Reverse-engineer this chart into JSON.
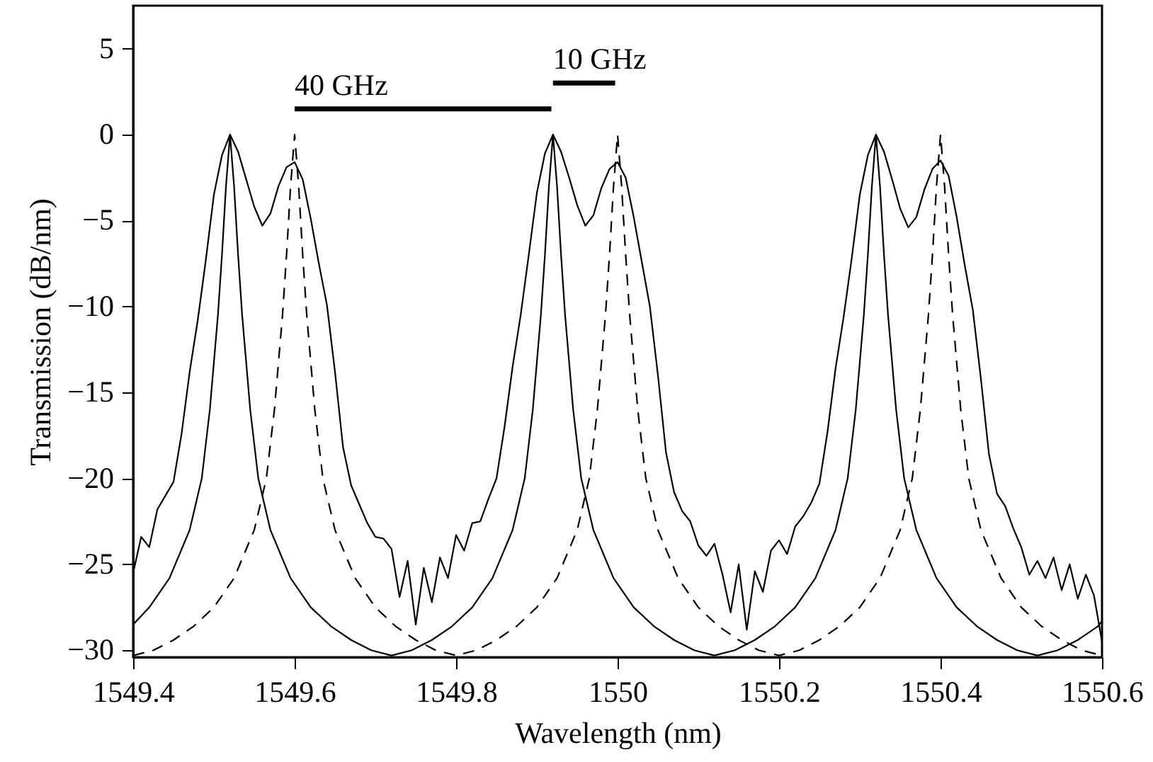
{
  "chart_data": {
    "type": "line",
    "xlabel": "Wavelength (nm)",
    "ylabel": "Transmission (dB/nm)",
    "xlim": [
      1549.4,
      1550.6
    ],
    "ylim": [
      -30.4,
      7.5
    ],
    "xticks": [
      1549.4,
      1549.6,
      1549.8,
      1550,
      1550.2,
      1550.4,
      1550.6
    ],
    "yticks": [
      -30,
      -25,
      -20,
      -15,
      -10,
      -5,
      0,
      5
    ],
    "grid": false,
    "series": [
      {
        "color": "#000000",
        "line_style": "solid",
        "x": [
          1549.4,
          1549.41,
          1549.42,
          1549.43,
          1549.44,
          1549.45,
          1549.46,
          1549.47,
          1549.48,
          1549.49,
          1549.5,
          1549.51,
          1549.52,
          1549.53,
          1549.54,
          1549.55,
          1549.56,
          1549.57,
          1549.58,
          1549.59,
          1549.6,
          1549.61,
          1549.62,
          1549.63,
          1549.64,
          1549.65,
          1549.66,
          1549.67,
          1549.68,
          1549.69,
          1549.7,
          1549.71,
          1549.72,
          1549.73,
          1549.74,
          1549.75,
          1549.76,
          1549.77,
          1549.78,
          1549.79,
          1549.8,
          1549.81,
          1549.82,
          1549.83,
          1549.84,
          1549.85,
          1549.86,
          1549.87,
          1549.88,
          1549.89,
          1549.9,
          1549.91,
          1549.92,
          1549.93,
          1549.94,
          1549.95,
          1549.96,
          1549.97,
          1549.98,
          1549.99,
          1550.0,
          1550.01,
          1550.02,
          1550.03,
          1550.04,
          1550.05,
          1550.06,
          1550.07,
          1550.08,
          1550.09,
          1550.1,
          1550.11,
          1550.12,
          1550.13,
          1550.14,
          1550.15,
          1550.16,
          1550.17,
          1550.18,
          1550.19,
          1550.2,
          1550.21,
          1550.22,
          1550.23,
          1550.24,
          1550.25,
          1550.26,
          1550.27,
          1550.28,
          1550.29,
          1550.3,
          1550.31,
          1550.32,
          1550.33,
          1550.34,
          1550.35,
          1550.36,
          1550.37,
          1550.38,
          1550.39,
          1550.4,
          1550.41,
          1550.42,
          1550.43,
          1550.44,
          1550.45,
          1550.46,
          1550.47,
          1550.48,
          1550.49,
          1550.5,
          1550.51,
          1550.52,
          1550.53,
          1550.54,
          1550.55,
          1550.56,
          1550.57,
          1550.58,
          1550.59,
          1550.6
        ],
        "values": [
          -25.5,
          -23.4,
          -24.0,
          -21.8,
          -21.0,
          -20.2,
          -17.4,
          -13.8,
          -10.8,
          -7.3,
          -3.5,
          -1.2,
          0,
          -1.0,
          -2.6,
          -4.2,
          -5.3,
          -4.6,
          -3.0,
          -1.9,
          -1.6,
          -2.6,
          -4.9,
          -7.5,
          -9.9,
          -13.8,
          -18.2,
          -20.4,
          -21.5,
          -22.6,
          -23.4,
          -23.5,
          -24.1,
          -26.9,
          -24.8,
          -28.5,
          -25.2,
          -27.2,
          -24.6,
          -25.8,
          -23.3,
          -24.2,
          -22.6,
          -22.5,
          -21.2,
          -20.0,
          -17.0,
          -13.5,
          -10.5,
          -7.0,
          -3.4,
          -1.1,
          0,
          -1.0,
          -2.5,
          -4.1,
          -5.3,
          -4.7,
          -3.1,
          -2.0,
          -1.6,
          -2.5,
          -4.8,
          -7.4,
          -10.0,
          -14.0,
          -18.5,
          -20.8,
          -21.9,
          -22.5,
          -23.9,
          -24.5,
          -23.8,
          -25.6,
          -27.8,
          -25.0,
          -28.8,
          -25.4,
          -26.6,
          -24.2,
          -23.6,
          -24.4,
          -22.8,
          -22.2,
          -21.4,
          -20.3,
          -17.3,
          -13.6,
          -10.6,
          -7.2,
          -3.5,
          -1.2,
          0,
          -1.0,
          -2.6,
          -4.3,
          -5.4,
          -4.8,
          -3.2,
          -2.0,
          -1.5,
          -2.4,
          -4.8,
          -7.6,
          -10.2,
          -14.2,
          -18.6,
          -20.9,
          -21.6,
          -22.9,
          -24.0,
          -25.6,
          -24.8,
          -25.8,
          -24.6,
          -26.5,
          -25.0,
          -27.0,
          -25.6,
          -26.8,
          -29.5
        ]
      },
      {
        "color": "#000000",
        "line_style": "solid",
        "x": [
          1549.4,
          1549.42,
          1549.445,
          1549.47,
          1549.485,
          1549.495,
          1549.505,
          1549.51,
          1549.515,
          1549.52,
          1549.525,
          1549.53,
          1549.535,
          1549.545,
          1549.555,
          1549.57,
          1549.595,
          1549.62,
          1549.645,
          1549.67,
          1549.695,
          1549.72,
          1549.745,
          1549.77,
          1549.795,
          1549.82,
          1549.845,
          1549.87,
          1549.885,
          1549.895,
          1549.905,
          1549.91,
          1549.915,
          1549.92,
          1549.925,
          1549.93,
          1549.935,
          1549.945,
          1549.955,
          1549.97,
          1549.995,
          1550.02,
          1550.045,
          1550.07,
          1550.095,
          1550.12,
          1550.145,
          1550.17,
          1550.195,
          1550.22,
          1550.245,
          1550.27,
          1550.285,
          1550.295,
          1550.305,
          1550.31,
          1550.315,
          1550.32,
          1550.325,
          1550.33,
          1550.335,
          1550.345,
          1550.355,
          1550.37,
          1550.395,
          1550.42,
          1550.445,
          1550.47,
          1550.495,
          1550.52,
          1550.545,
          1550.57,
          1550.595,
          1550.6
        ],
        "values": [
          -28.5,
          -27.5,
          -25.8,
          -23.0,
          -20.0,
          -16.0,
          -10.5,
          -7.0,
          -3.0,
          0,
          -3.0,
          -7.0,
          -10.5,
          -16.0,
          -20.0,
          -23.0,
          -25.8,
          -27.5,
          -28.6,
          -29.4,
          -30.0,
          -30.3,
          -30.0,
          -29.4,
          -28.6,
          -27.5,
          -25.8,
          -23.0,
          -20.0,
          -16.0,
          -10.5,
          -7.0,
          -3.0,
          0,
          -3.0,
          -7.0,
          -10.5,
          -16.0,
          -20.0,
          -23.0,
          -25.8,
          -27.5,
          -28.6,
          -29.4,
          -30.0,
          -30.3,
          -30.0,
          -29.4,
          -28.6,
          -27.5,
          -25.8,
          -23.0,
          -20.0,
          -16.0,
          -10.5,
          -7.0,
          -3.0,
          0,
          -3.0,
          -7.0,
          -10.5,
          -16.0,
          -20.0,
          -23.0,
          -25.8,
          -27.5,
          -28.6,
          -29.4,
          -30.0,
          -30.3,
          -30.0,
          -29.4,
          -28.6,
          -28.3
        ]
      },
      {
        "color": "#000000",
        "line_style": "dashed",
        "x": [
          1549.4,
          1549.425,
          1549.45,
          1549.475,
          1549.5,
          1549.525,
          1549.55,
          1549.565,
          1549.575,
          1549.585,
          1549.59,
          1549.595,
          1549.6,
          1549.605,
          1549.61,
          1549.615,
          1549.625,
          1549.635,
          1549.65,
          1549.675,
          1549.7,
          1549.725,
          1549.75,
          1549.775,
          1549.8,
          1549.825,
          1549.85,
          1549.875,
          1549.9,
          1549.925,
          1549.95,
          1549.965,
          1549.975,
          1549.985,
          1549.99,
          1549.995,
          1550.0,
          1550.005,
          1550.01,
          1550.015,
          1550.025,
          1550.035,
          1550.05,
          1550.075,
          1550.1,
          1550.125,
          1550.15,
          1550.175,
          1550.2,
          1550.225,
          1550.25,
          1550.275,
          1550.3,
          1550.325,
          1550.35,
          1550.365,
          1550.375,
          1550.385,
          1550.39,
          1550.395,
          1550.4,
          1550.405,
          1550.41,
          1550.415,
          1550.425,
          1550.435,
          1550.45,
          1550.475,
          1550.5,
          1550.525,
          1550.55,
          1550.575,
          1550.6
        ],
        "values": [
          -30.3,
          -30.0,
          -29.4,
          -28.6,
          -27.5,
          -25.8,
          -23.0,
          -20.0,
          -16.0,
          -10.5,
          -7.0,
          -3.0,
          0,
          -3.0,
          -7.0,
          -10.5,
          -16.0,
          -20.0,
          -23.0,
          -25.8,
          -27.5,
          -28.6,
          -29.4,
          -30.0,
          -30.3,
          -30.0,
          -29.4,
          -28.6,
          -27.5,
          -25.8,
          -23.0,
          -20.0,
          -16.0,
          -10.5,
          -7.0,
          -3.0,
          0,
          -3.0,
          -7.0,
          -10.5,
          -16.0,
          -20.0,
          -23.0,
          -25.8,
          -27.5,
          -28.6,
          -29.4,
          -30.0,
          -30.3,
          -30.0,
          -29.4,
          -28.6,
          -27.5,
          -25.8,
          -23.0,
          -20.0,
          -16.0,
          -10.5,
          -7.0,
          -3.0,
          0,
          -3.0,
          -7.0,
          -10.5,
          -16.0,
          -20.0,
          -23.0,
          -25.8,
          -27.5,
          -28.6,
          -29.4,
          -30.0,
          -30.3
        ]
      },
      {
        "color": "#000000",
        "line_style": "solid",
        "x": [
          1549.6,
          1549.918
        ],
        "values": [
          1.5,
          1.5
        ]
      },
      {
        "color": "#000000",
        "line_style": "solid",
        "x": [
          1549.92,
          1549.997
        ],
        "values": [
          3.0,
          3.0
        ]
      }
    ],
    "annotations": [
      "40 GHz",
      "10 GHz"
    ]
  }
}
